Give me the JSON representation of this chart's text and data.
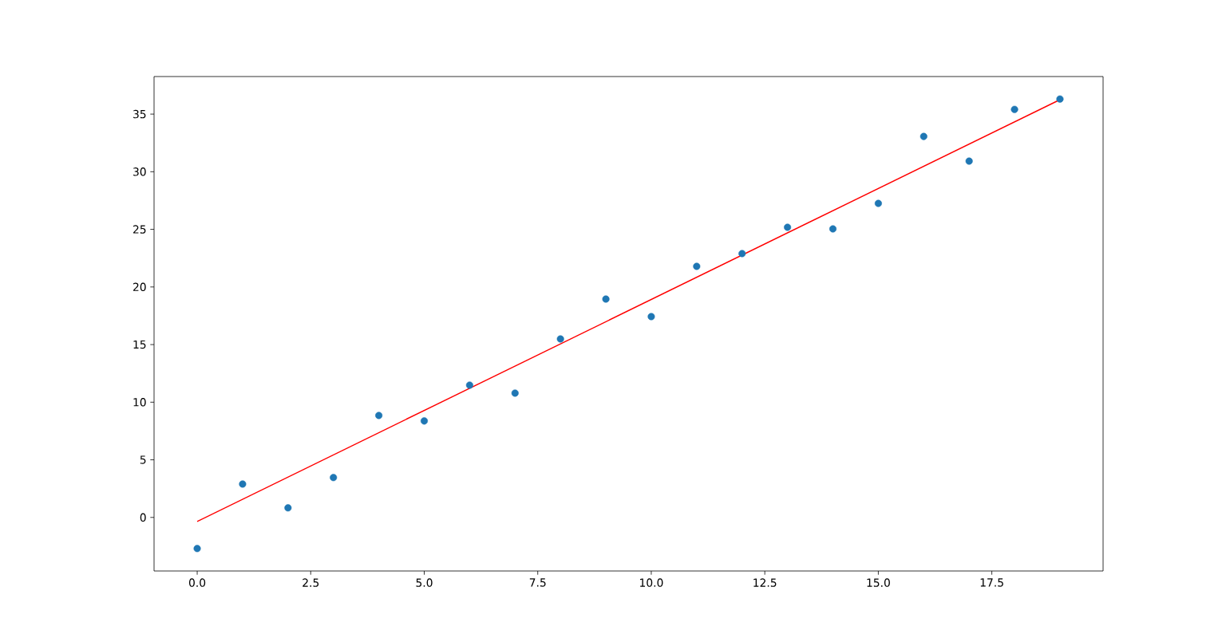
{
  "chart_data": {
    "type": "scatter",
    "x": [
      0,
      1,
      2,
      3,
      4,
      5,
      6,
      7,
      8,
      9,
      10,
      11,
      12,
      13,
      14,
      15,
      16,
      17,
      18,
      19
    ],
    "series": [
      {
        "color": "#1f77b4",
        "marker": "circle",
        "values": [
          -2.7,
          2.9,
          0.83,
          3.46,
          8.85,
          8.37,
          11.48,
          10.79,
          15.49,
          18.95,
          17.43,
          21.79,
          22.9,
          25.18,
          25.04,
          27.25,
          33.06,
          30.92,
          35.41,
          36.31
        ]
      },
      {
        "type": "line",
        "color": "#ff0000",
        "marker": "none",
        "x": [
          0,
          19
        ],
        "values": [
          -0.35,
          36.25
        ]
      }
    ],
    "xlim": [
      -0.95,
      19.95
    ],
    "ylim": [
      -4.65,
      38.26
    ],
    "xticks": [
      {
        "value": 0,
        "label": "0.0"
      },
      {
        "value": 2.5,
        "label": "2.5"
      },
      {
        "value": 5,
        "label": "5.0"
      },
      {
        "value": 7.5,
        "label": "7.5"
      },
      {
        "value": 10,
        "label": "10.0"
      },
      {
        "value": 12.5,
        "label": "12.5"
      },
      {
        "value": 15,
        "label": "15.0"
      },
      {
        "value": 17.5,
        "label": "17.5"
      }
    ],
    "yticks": [
      0,
      5,
      10,
      15,
      20,
      25,
      30,
      35
    ],
    "grid": false
  }
}
